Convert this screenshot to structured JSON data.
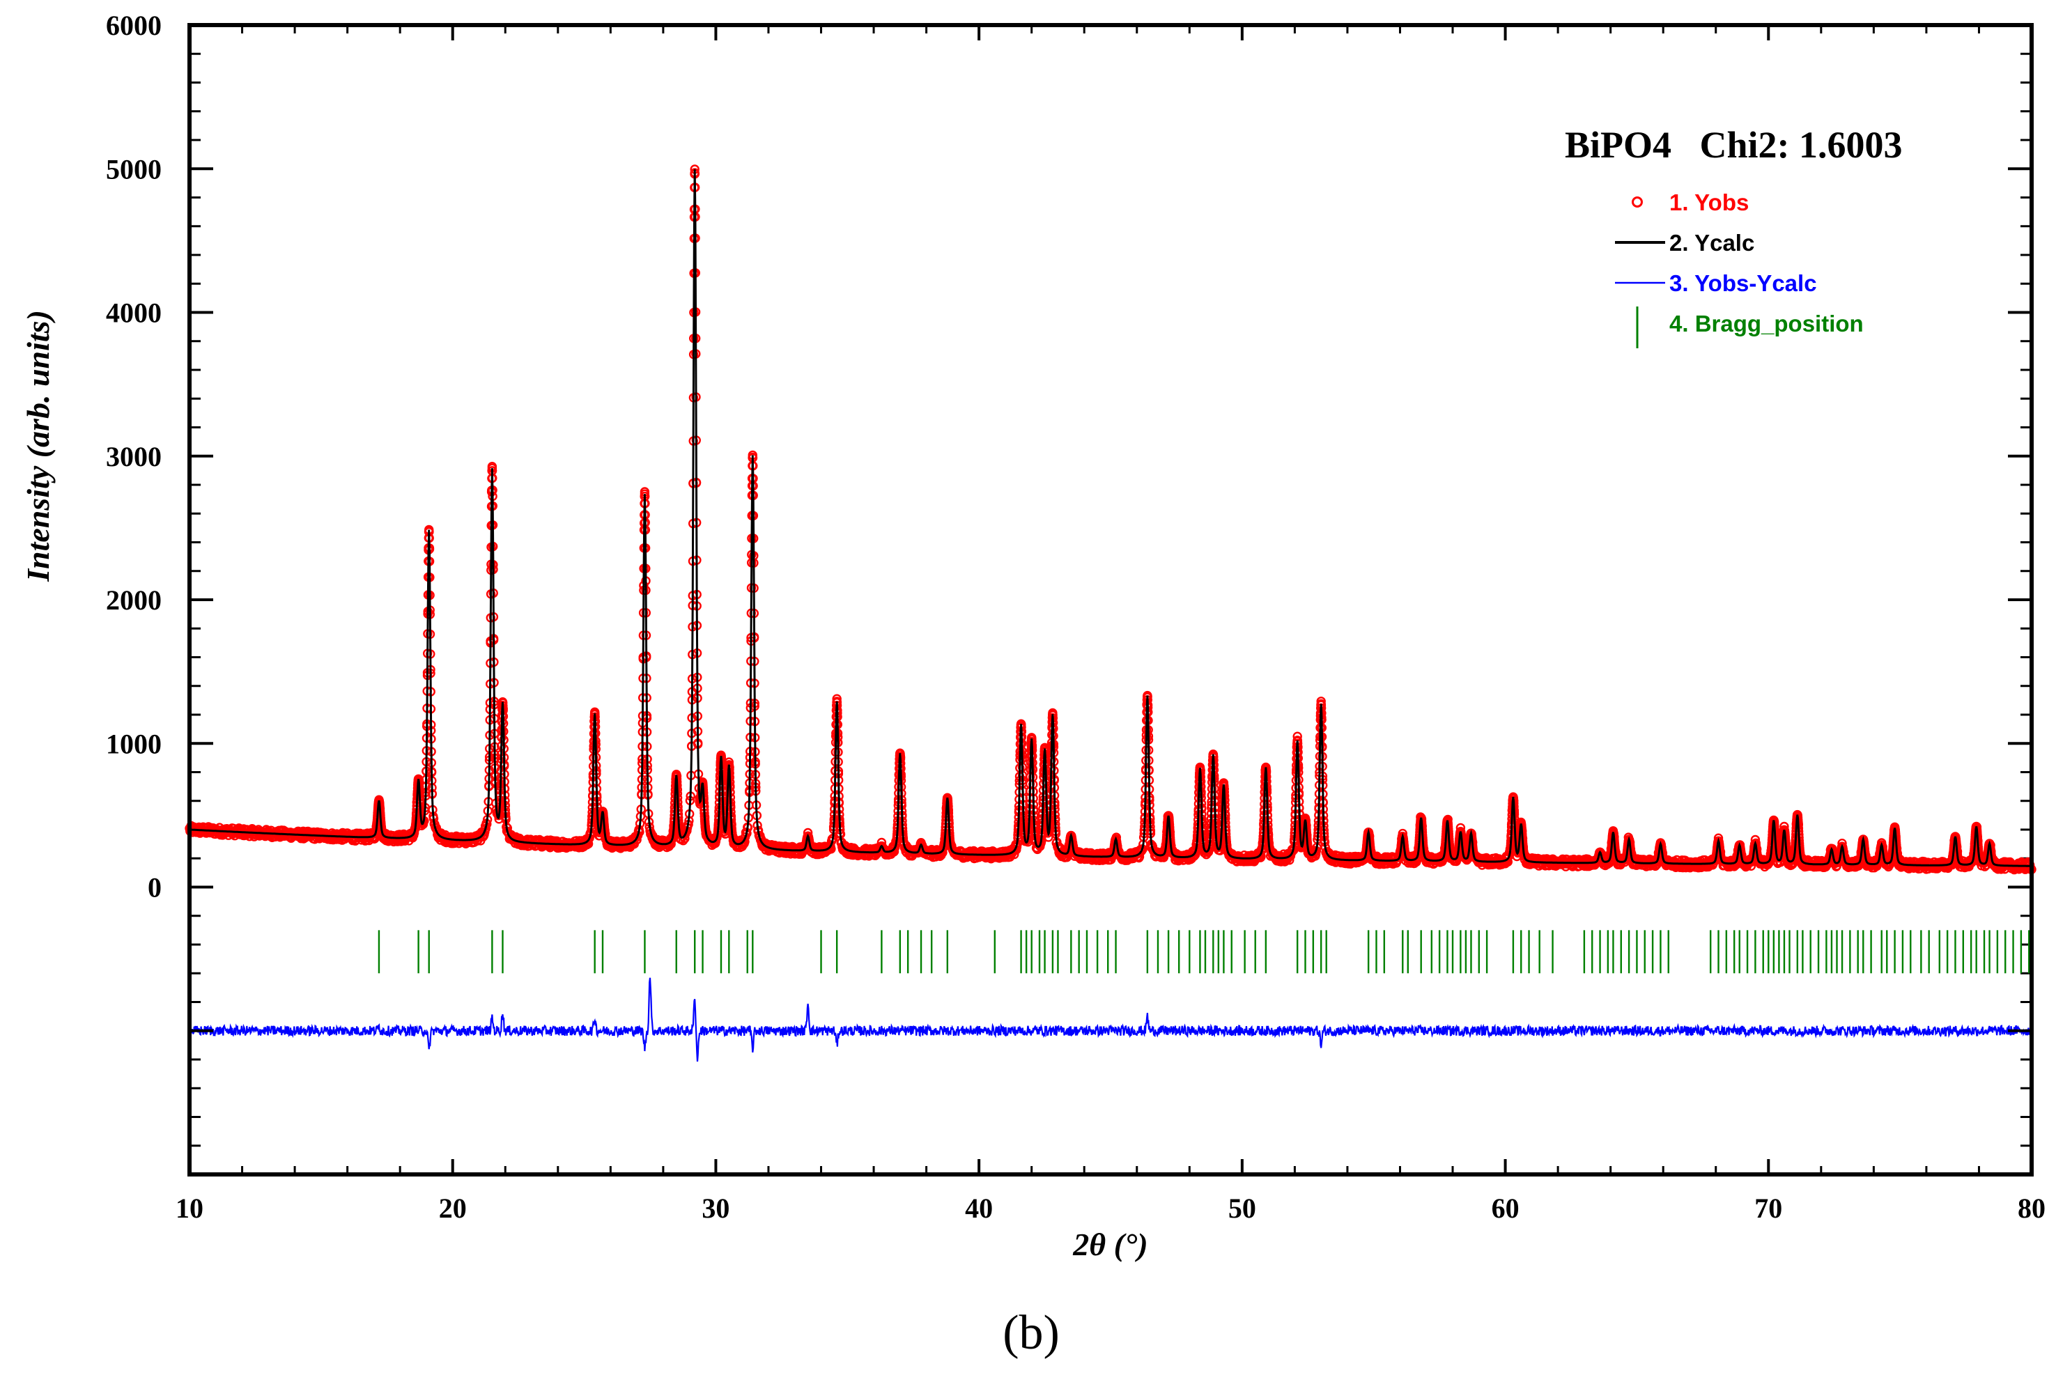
{
  "chart_data": {
    "type": "line",
    "title": "BiPO4   Chi2: 1.6003",
    "panel_label": "(b)",
    "xlabel": "2θ (°)",
    "ylabel": "Intensity (arb. units)",
    "xlim": [
      10,
      80
    ],
    "ylim": [
      -2000,
      6000
    ],
    "x_ticks": [
      "10",
      "20",
      "30",
      "40",
      "50",
      "60",
      "70",
      "80"
    ],
    "y_ticks": [
      "0",
      "1000",
      "2000",
      "3000",
      "4000",
      "5000",
      "6000"
    ],
    "colors": {
      "yobs": "#ff0000",
      "ycalc": "#000000",
      "diff": "#0000ff",
      "bragg": "#008000"
    },
    "legend": [
      "1. Yobs",
      "2. Ycalc",
      "3. Yobs-Ycalc",
      "4. Bragg_position"
    ],
    "background": {
      "start": 400,
      "mid": 200,
      "end": 120
    },
    "peaks": [
      {
        "x": 17.2,
        "y": 600
      },
      {
        "x": 18.7,
        "y": 720
      },
      {
        "x": 19.1,
        "y": 2480
      },
      {
        "x": 21.5,
        "y": 2900
      },
      {
        "x": 21.9,
        "y": 1250
      },
      {
        "x": 25.4,
        "y": 1200
      },
      {
        "x": 25.7,
        "y": 500
      },
      {
        "x": 27.3,
        "y": 2730
      },
      {
        "x": 28.5,
        "y": 750
      },
      {
        "x": 29.2,
        "y": 4980
      },
      {
        "x": 29.5,
        "y": 600
      },
      {
        "x": 30.2,
        "y": 880
      },
      {
        "x": 30.5,
        "y": 820
      },
      {
        "x": 31.4,
        "y": 3000
      },
      {
        "x": 33.5,
        "y": 350
      },
      {
        "x": 34.6,
        "y": 1290
      },
      {
        "x": 36.3,
        "y": 280
      },
      {
        "x": 37.0,
        "y": 930
      },
      {
        "x": 37.8,
        "y": 290
      },
      {
        "x": 38.8,
        "y": 620
      },
      {
        "x": 41.6,
        "y": 1120
      },
      {
        "x": 42.0,
        "y": 1010
      },
      {
        "x": 42.5,
        "y": 930
      },
      {
        "x": 42.8,
        "y": 1180
      },
      {
        "x": 43.5,
        "y": 350
      },
      {
        "x": 45.2,
        "y": 330
      },
      {
        "x": 46.4,
        "y": 1330
      },
      {
        "x": 47.2,
        "y": 490
      },
      {
        "x": 48.4,
        "y": 820
      },
      {
        "x": 48.9,
        "y": 910
      },
      {
        "x": 49.3,
        "y": 700
      },
      {
        "x": 50.9,
        "y": 830
      },
      {
        "x": 52.1,
        "y": 1010
      },
      {
        "x": 52.4,
        "y": 440
      },
      {
        "x": 53.0,
        "y": 1270
      },
      {
        "x": 54.8,
        "y": 380
      },
      {
        "x": 56.1,
        "y": 350
      },
      {
        "x": 56.8,
        "y": 480
      },
      {
        "x": 57.8,
        "y": 460
      },
      {
        "x": 58.3,
        "y": 380
      },
      {
        "x": 58.7,
        "y": 370
      },
      {
        "x": 60.3,
        "y": 620
      },
      {
        "x": 60.6,
        "y": 430
      },
      {
        "x": 63.6,
        "y": 240
      },
      {
        "x": 64.1,
        "y": 380
      },
      {
        "x": 64.7,
        "y": 330
      },
      {
        "x": 65.9,
        "y": 300
      },
      {
        "x": 68.1,
        "y": 320
      },
      {
        "x": 68.9,
        "y": 290
      },
      {
        "x": 69.5,
        "y": 300
      },
      {
        "x": 70.2,
        "y": 460
      },
      {
        "x": 70.6,
        "y": 390
      },
      {
        "x": 71.1,
        "y": 500
      },
      {
        "x": 72.4,
        "y": 260
      },
      {
        "x": 72.8,
        "y": 280
      },
      {
        "x": 73.6,
        "y": 330
      },
      {
        "x": 74.3,
        "y": 290
      },
      {
        "x": 74.8,
        "y": 410
      },
      {
        "x": 77.1,
        "y": 350
      },
      {
        "x": 77.9,
        "y": 420
      },
      {
        "x": 78.4,
        "y": 300
      }
    ],
    "bragg_positions": [
      17.2,
      18.7,
      19.1,
      21.5,
      21.9,
      25.4,
      25.7,
      27.3,
      28.5,
      29.2,
      29.5,
      30.2,
      30.5,
      31.2,
      31.4,
      34.0,
      34.6,
      36.3,
      37.0,
      37.3,
      37.8,
      38.2,
      38.8,
      40.6,
      41.6,
      41.8,
      42.0,
      42.3,
      42.5,
      42.8,
      43.0,
      43.5,
      43.8,
      44.1,
      44.5,
      44.9,
      45.2,
      46.4,
      46.8,
      47.2,
      47.6,
      48.0,
      48.4,
      48.6,
      48.9,
      49.1,
      49.3,
      49.6,
      50.1,
      50.5,
      50.9,
      52.1,
      52.4,
      52.7,
      53.0,
      53.2,
      54.8,
      55.1,
      55.4,
      56.1,
      56.3,
      56.8,
      57.2,
      57.5,
      57.8,
      58.0,
      58.3,
      58.5,
      58.7,
      59.0,
      59.3,
      60.3,
      60.6,
      60.9,
      61.3,
      61.8,
      63.0,
      63.3,
      63.6,
      63.9,
      64.1,
      64.4,
      64.7,
      65.0,
      65.3,
      65.6,
      65.9,
      66.2,
      67.8,
      68.1,
      68.4,
      68.7,
      68.9,
      69.2,
      69.5,
      69.8,
      70.0,
      70.2,
      70.4,
      70.6,
      70.8,
      71.1,
      71.3,
      71.6,
      71.9,
      72.2,
      72.4,
      72.6,
      72.8,
      73.1,
      73.4,
      73.6,
      73.9,
      74.3,
      74.5,
      74.8,
      75.1,
      75.4,
      75.8,
      76.1,
      76.5,
      76.8,
      77.1,
      77.4,
      77.7,
      77.9,
      78.2,
      78.4,
      78.7,
      79.0,
      79.3,
      79.6,
      79.9
    ],
    "diff_baseline": -1000,
    "diff_spikes": [
      {
        "x": 17.2,
        "y": 30
      },
      {
        "x": 19.1,
        "y": -140
      },
      {
        "x": 21.5,
        "y": 90
      },
      {
        "x": 21.9,
        "y": 120
      },
      {
        "x": 25.4,
        "y": 90
      },
      {
        "x": 27.3,
        "y": -120
      },
      {
        "x": 27.5,
        "y": 380
      },
      {
        "x": 29.2,
        "y": 220
      },
      {
        "x": 29.3,
        "y": -190
      },
      {
        "x": 31.4,
        "y": -120
      },
      {
        "x": 33.5,
        "y": 190
      },
      {
        "x": 34.6,
        "y": -100
      },
      {
        "x": 46.4,
        "y": 100
      },
      {
        "x": 53.0,
        "y": -100
      }
    ]
  }
}
